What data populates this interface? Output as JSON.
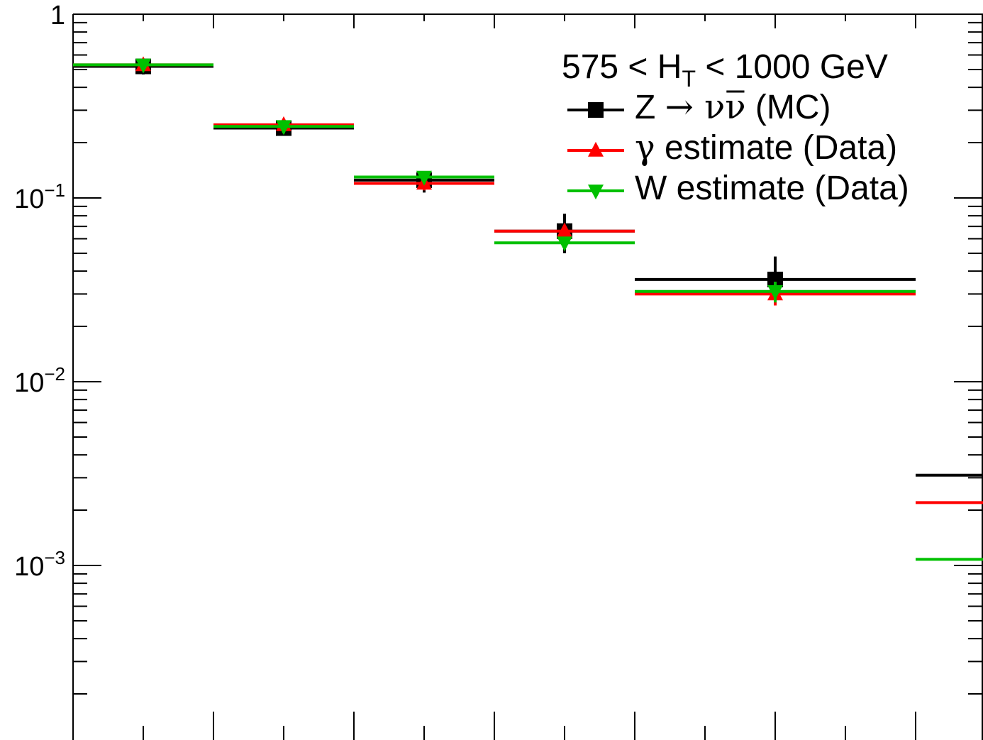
{
  "chart_data": {
    "type": "scatter",
    "title": "",
    "xlabel": "",
    "ylabel": "",
    "y_scale": "log",
    "ylim": [
      0.00013,
      1.0
    ],
    "xlim": [
      0,
      12.5
    ],
    "grid": false,
    "legend_placement": "top-right",
    "y_ticks": [
      {
        "base": "1",
        "exp": ""
      },
      {
        "base": "10",
        "exp": "−1"
      },
      {
        "base": "10",
        "exp": "−2"
      },
      {
        "base": "10",
        "exp": "−3"
      }
    ],
    "annotation": "575 < H_T < 1000 GeV",
    "annotation_parts": {
      "pre": "575 < H",
      "sub": "T",
      "post": " < 1000 GeV"
    },
    "bins": [
      {
        "x": 0.5,
        "low": 0,
        "high": 1
      },
      {
        "x": 1.5,
        "low": 1,
        "high": 2
      },
      {
        "x": 2.5,
        "low": 2,
        "high": 3
      },
      {
        "x": 3.5,
        "low": 3,
        "high": 4
      },
      {
        "x": 5.0,
        "low": 4,
        "high": 6
      },
      {
        "x": 7.0,
        "low": 6,
        "high": 8
      }
    ],
    "series": [
      {
        "name": "Z → νν̄ (MC)",
        "legend_parts": {
          "pre": "Z ",
          "arrow": "→",
          "nu": " ν",
          "nubar": "ν",
          "post": " (MC)"
        },
        "color": "#000000",
        "marker": "square",
        "values": [
          0.52,
          0.24,
          0.125,
          0.066,
          0.036,
          0.0031
        ],
        "err_low": [
          0.05,
          0.02,
          0.018,
          0.016,
          0.008,
          0.0008
        ],
        "err_high": [
          0.05,
          0.02,
          0.015,
          0.016,
          0.012,
          0.0012
        ]
      },
      {
        "name": "γ estimate (Data)",
        "legend_parts": {
          "pre": "γ",
          "post": " estimate (Data)"
        },
        "color": "#ff0000",
        "marker": "triangle-up",
        "values": [
          0.53,
          0.25,
          0.12,
          0.066,
          0.03,
          0.0022
        ],
        "err_low": [
          0.03,
          0.015,
          0.01,
          0.005,
          0.004,
          0.0005
        ],
        "err_high": [
          0.03,
          0.015,
          0.01,
          0.005,
          0.004,
          0.0005
        ]
      },
      {
        "name": "W estimate (Data)",
        "legend_parts": {
          "pre": "W estimate (Data)"
        },
        "color": "#00c000",
        "marker": "triangle-down",
        "values": [
          0.53,
          0.245,
          0.13,
          0.057,
          0.031,
          0.00108
        ],
        "err_low": [
          0.03,
          0.02,
          0.01,
          0.004,
          0.004,
          0.00054
        ],
        "err_high": [
          0.03,
          0.02,
          0.01,
          0.004,
          0.004,
          0.00054
        ]
      }
    ]
  }
}
